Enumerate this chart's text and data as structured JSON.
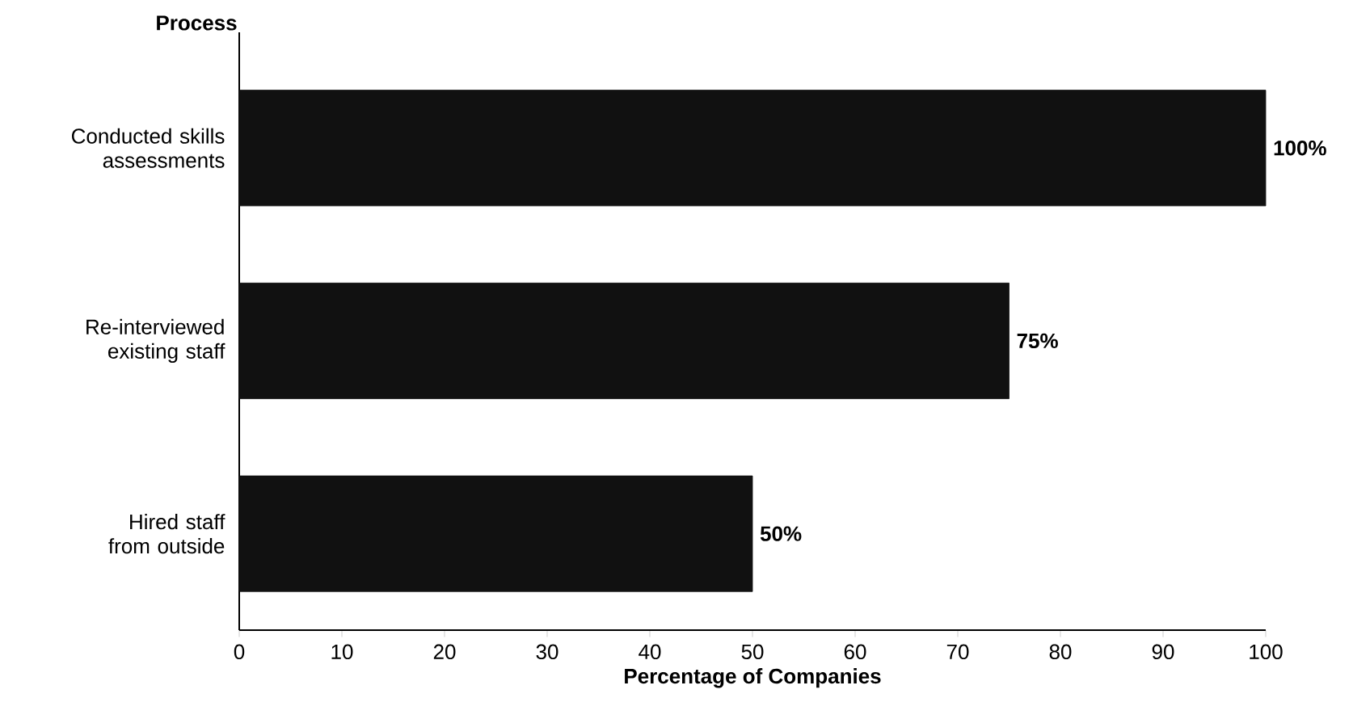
{
  "chart_data": {
    "type": "bar",
    "orientation": "horizontal",
    "ylabel": "Process",
    "xlabel": "Percentage of Companies",
    "categories": [
      "Conducted skills assessments",
      "Re-interviewed existing staff",
      "Hired staff from outside"
    ],
    "values": [
      100,
      75,
      50
    ],
    "value_labels": [
      "100%",
      "75%",
      "50%"
    ],
    "color": "#111111",
    "xlim": [
      0,
      100
    ],
    "xticks": [
      0,
      10,
      20,
      30,
      40,
      50,
      60,
      70,
      80,
      90,
      100
    ],
    "grid": false
  }
}
